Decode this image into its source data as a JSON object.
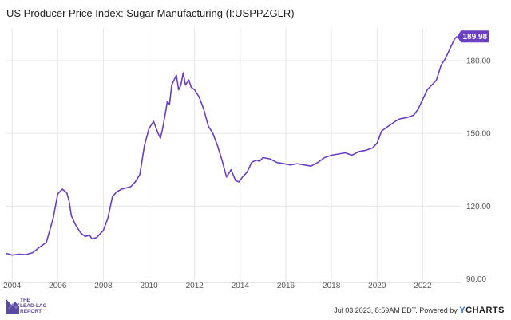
{
  "chart_data": {
    "type": "line",
    "title": "US Producer Price Index: Sugar Manufacturing (I:USPPZGLR)",
    "xlabel": "",
    "ylabel": "",
    "xlim": [
      2003.75,
      2023.7
    ],
    "ylim": [
      88.5,
      193.5
    ],
    "grid": true,
    "x_ticks": [
      "2004",
      "2006",
      "2008",
      "2010",
      "2012",
      "2014",
      "2016",
      "2018",
      "2020",
      "2022"
    ],
    "y_ticks": [
      "90.00",
      "120.00",
      "150.00",
      "180.00"
    ],
    "last_value_label": "189.98",
    "series": [
      {
        "color": "#6a3fc2",
        "x": [
          2003.75,
          2004.0,
          2004.3,
          2004.6,
          2004.9,
          2005.2,
          2005.5,
          2005.8,
          2006.0,
          2006.2,
          2006.4,
          2006.5,
          2006.6,
          2006.8,
          2007.0,
          2007.2,
          2007.4,
          2007.5,
          2007.7,
          2007.8,
          2008.0,
          2008.2,
          2008.4,
          2008.6,
          2008.8,
          2009.0,
          2009.2,
          2009.4,
          2009.6,
          2009.8,
          2010.0,
          2010.2,
          2010.4,
          2010.5,
          2010.6,
          2010.75,
          2010.8,
          2010.9,
          2011.0,
          2011.2,
          2011.3,
          2011.4,
          2011.5,
          2011.6,
          2011.75,
          2011.85,
          2012.0,
          2012.2,
          2012.4,
          2012.6,
          2012.8,
          2013.0,
          2013.2,
          2013.4,
          2013.6,
          2013.8,
          2013.95,
          2014.1,
          2014.3,
          2014.5,
          2014.7,
          2014.85,
          2015.0,
          2015.3,
          2015.6,
          2015.9,
          2016.2,
          2016.5,
          2016.8,
          2017.1,
          2017.4,
          2017.7,
          2018.0,
          2018.3,
          2018.6,
          2018.9,
          2019.2,
          2019.5,
          2019.8,
          2020.0,
          2020.2,
          2020.5,
          2020.8,
          2021.0,
          2021.3,
          2021.6,
          2021.8,
          2022.0,
          2022.2,
          2022.4,
          2022.6,
          2022.8,
          2023.0,
          2023.2,
          2023.4,
          2023.5
        ],
        "values": [
          100.5,
          99.8,
          100.2,
          100.0,
          100.8,
          103.0,
          105.0,
          115.0,
          125.0,
          127.0,
          125.5,
          122.0,
          116.0,
          112.0,
          109.0,
          107.5,
          108.0,
          106.5,
          107.0,
          108.0,
          110.0,
          115.0,
          124.0,
          126.0,
          127.0,
          127.5,
          128.0,
          130.0,
          133.0,
          145.0,
          152.0,
          155.0,
          150.0,
          148.0,
          152.0,
          160.0,
          163.0,
          162.0,
          170.0,
          174.0,
          168.0,
          170.0,
          175.0,
          170.0,
          172.0,
          169.0,
          168.0,
          165.0,
          160.0,
          153.0,
          150.0,
          145.0,
          139.0,
          132.0,
          135.0,
          130.5,
          130.0,
          132.0,
          134.0,
          138.0,
          139.0,
          138.5,
          140.0,
          139.5,
          138.0,
          137.5,
          137.0,
          137.5,
          137.0,
          136.5,
          138.0,
          140.0,
          141.0,
          141.5,
          142.0,
          141.0,
          142.5,
          143.0,
          144.0,
          146.0,
          151.0,
          153.0,
          155.0,
          156.0,
          156.5,
          157.5,
          160.0,
          164.0,
          168.0,
          170.0,
          172.0,
          178.0,
          181.0,
          185.0,
          189.0,
          189.98
        ]
      }
    ]
  },
  "footer": {
    "timestamp": "Jul 03 2023, 8:59AM EDT.",
    "powered_by": "Powered by",
    "brand_y": "Y",
    "brand_rest": "CHARTS"
  },
  "logo": {
    "line1": "THE",
    "line2": "LEAD-LAG",
    "line3": "REPORT"
  }
}
